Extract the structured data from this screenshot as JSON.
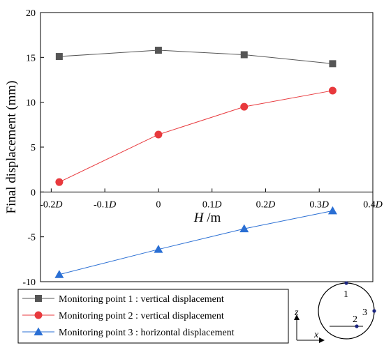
{
  "chart_data": {
    "type": "line",
    "ylabel": "Final displacement (mm)",
    "xlabel_symbol": "H",
    "xlabel_unit": " /m",
    "ylim": [
      -10,
      20
    ],
    "xlim": [
      -0.22,
      0.4
    ],
    "y_ticks": [
      {
        "value": 20,
        "label": "20"
      },
      {
        "value": 15,
        "label": "15"
      },
      {
        "value": 10,
        "label": "10"
      },
      {
        "value": 5,
        "label": "5"
      },
      {
        "value": 0,
        "label": "0"
      },
      {
        "value": -5,
        "label": "-5"
      },
      {
        "value": -10,
        "label": "-10"
      }
    ],
    "x_ticks": [
      {
        "value": -0.2,
        "num": "-0.2",
        "sym": "D"
      },
      {
        "value": -0.1,
        "num": "-0.1",
        "sym": "D"
      },
      {
        "value": 0,
        "num": "0",
        "sym": ""
      },
      {
        "value": 0.1,
        "num": "0.1",
        "sym": "D"
      },
      {
        "value": 0.2,
        "num": "0.2",
        "sym": "D"
      },
      {
        "value": 0.3,
        "num": "0.3",
        "sym": "D"
      },
      {
        "value": 0.4,
        "num": "0.4",
        "sym": "D"
      }
    ],
    "x": [
      -0.185,
      0,
      0.16,
      0.325
    ],
    "series": [
      {
        "name": "Monitoring point 1 : vertical displacement",
        "values": [
          15.1,
          15.8,
          15.3,
          14.3
        ],
        "color": "#555555",
        "marker": "square"
      },
      {
        "name": "Monitoring point 2 : vertical displacement",
        "values": [
          1.1,
          6.4,
          9.5,
          11.3
        ],
        "color": "#e8393d",
        "marker": "circle"
      },
      {
        "name": "Monitoring point 3 : horizontal displacement",
        "values": [
          -9.2,
          -6.4,
          -4.1,
          -2.1
        ],
        "color": "#2a6fd4",
        "marker": "triangle"
      }
    ],
    "grid": false
  },
  "inset": {
    "labels": [
      "1",
      "2",
      "3"
    ],
    "axis_z": "z",
    "axis_x": "x",
    "dot_color": "#1a237e"
  }
}
